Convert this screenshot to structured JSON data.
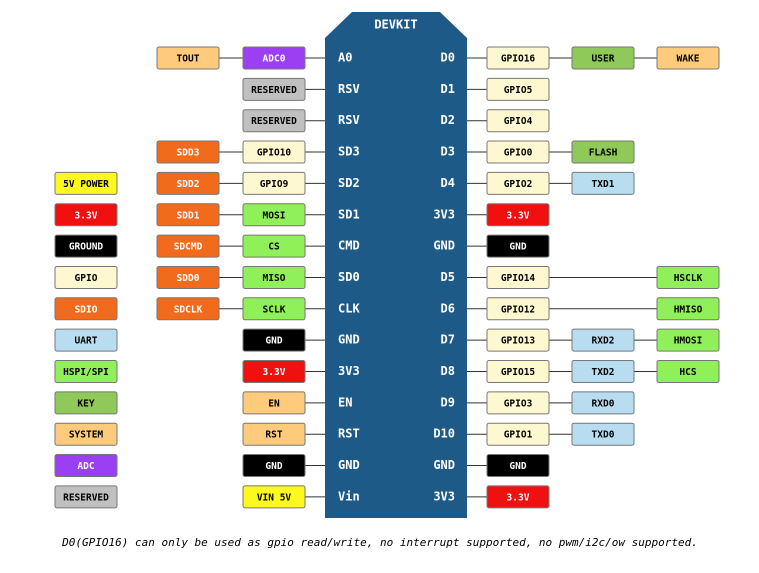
{
  "board": {
    "title": "DEVKIT"
  },
  "left_rows": [
    {
      "pin": "A0",
      "tags": [
        {
          "text": "ADC0",
          "color": "#9b3ff2"
        },
        {
          "text": "TOUT",
          "color": "#fdcb7b"
        }
      ]
    },
    {
      "pin": "RSV",
      "tags": [
        {
          "text": "RESERVED",
          "color": "#c0c0c0"
        }
      ]
    },
    {
      "pin": "RSV",
      "tags": [
        {
          "text": "RESERVED",
          "color": "#c0c0c0"
        }
      ]
    },
    {
      "pin": "SD3",
      "tags": [
        {
          "text": "GPIO10",
          "color": "#fdf8cf"
        },
        {
          "text": "SDD3",
          "color": "#f26b1d"
        }
      ]
    },
    {
      "pin": "SD2",
      "tags": [
        {
          "text": "GPIO9",
          "color": "#fdf8cf"
        },
        {
          "text": "SDD2",
          "color": "#f26b1d"
        }
      ]
    },
    {
      "pin": "SD1",
      "tags": [
        {
          "text": "MOSI",
          "color": "#8ff05a"
        },
        {
          "text": "SDD1",
          "color": "#f26b1d"
        }
      ]
    },
    {
      "pin": "CMD",
      "tags": [
        {
          "text": "CS",
          "color": "#8ff05a"
        },
        {
          "text": "SDCMD",
          "color": "#f26b1d"
        }
      ]
    },
    {
      "pin": "SD0",
      "tags": [
        {
          "text": "MISO",
          "color": "#8ff05a"
        },
        {
          "text": "SDD0",
          "color": "#f26b1d"
        }
      ]
    },
    {
      "pin": "CLK",
      "tags": [
        {
          "text": "SCLK",
          "color": "#8ff05a"
        },
        {
          "text": "SDCLK",
          "color": "#f26b1d"
        }
      ]
    },
    {
      "pin": "GND",
      "tags": [
        {
          "text": "GND",
          "color": "#000000"
        }
      ]
    },
    {
      "pin": "3V3",
      "tags": [
        {
          "text": "3.3V",
          "color": "#f01010"
        }
      ]
    },
    {
      "pin": "EN",
      "tags": [
        {
          "text": "EN",
          "color": "#fdcb7b"
        }
      ]
    },
    {
      "pin": "RST",
      "tags": [
        {
          "text": "RST",
          "color": "#fdcb7b"
        }
      ]
    },
    {
      "pin": "GND",
      "tags": [
        {
          "text": "GND",
          "color": "#000000"
        }
      ]
    },
    {
      "pin": "Vin",
      "tags": [
        {
          "text": "VIN 5V",
          "color": "#fdf81e"
        }
      ]
    }
  ],
  "right_rows": [
    {
      "pin": "D0",
      "tags": [
        {
          "text": "GPIO16",
          "color": "#fdf8cf"
        },
        {
          "text": "USER",
          "color": "#8ec95a"
        },
        {
          "text": "WAKE",
          "color": "#fdcb7b"
        }
      ]
    },
    {
      "pin": "D1",
      "tags": [
        {
          "text": "GPIO5",
          "color": "#fdf8cf"
        }
      ]
    },
    {
      "pin": "D2",
      "tags": [
        {
          "text": "GPIO4",
          "color": "#fdf8cf"
        }
      ]
    },
    {
      "pin": "D3",
      "tags": [
        {
          "text": "GPIO0",
          "color": "#fdf8cf"
        },
        {
          "text": "FLASH",
          "color": "#8ec95a"
        }
      ]
    },
    {
      "pin": "D4",
      "tags": [
        {
          "text": "GPIO2",
          "color": "#fdf8cf"
        },
        {
          "text": "TXD1",
          "color": "#b8dcf0"
        }
      ]
    },
    {
      "pin": "3V3",
      "tags": [
        {
          "text": "3.3V",
          "color": "#f01010"
        }
      ]
    },
    {
      "pin": "GND",
      "tags": [
        {
          "text": "GND",
          "color": "#000000"
        }
      ]
    },
    {
      "pin": "D5",
      "tags": [
        {
          "text": "GPIO14",
          "color": "#fdf8cf"
        },
        null,
        {
          "text": "HSCLK",
          "color": "#8ff05a"
        }
      ]
    },
    {
      "pin": "D6",
      "tags": [
        {
          "text": "GPIO12",
          "color": "#fdf8cf"
        },
        null,
        {
          "text": "HMISO",
          "color": "#8ff05a"
        }
      ]
    },
    {
      "pin": "D7",
      "tags": [
        {
          "text": "GPIO13",
          "color": "#fdf8cf"
        },
        {
          "text": "RXD2",
          "color": "#b8dcf0"
        },
        {
          "text": "HMOSI",
          "color": "#8ff05a"
        }
      ]
    },
    {
      "pin": "D8",
      "tags": [
        {
          "text": "GPIO15",
          "color": "#fdf8cf"
        },
        {
          "text": "TXD2",
          "color": "#b8dcf0"
        },
        {
          "text": "HCS",
          "color": "#8ff05a"
        }
      ]
    },
    {
      "pin": "D9",
      "tags": [
        {
          "text": "GPIO3",
          "color": "#fdf8cf"
        },
        {
          "text": "RXD0",
          "color": "#b8dcf0"
        }
      ]
    },
    {
      "pin": "D10",
      "tags": [
        {
          "text": "GPIO1",
          "color": "#fdf8cf"
        },
        {
          "text": "TXD0",
          "color": "#b8dcf0"
        }
      ]
    },
    {
      "pin": "GND",
      "tags": [
        {
          "text": "GND",
          "color": "#000000"
        }
      ]
    },
    {
      "pin": "3V3",
      "tags": [
        {
          "text": "3.3V",
          "color": "#f01010"
        }
      ]
    }
  ],
  "legend": [
    {
      "text": "5V POWER",
      "color": "#fdf81e"
    },
    {
      "text": "3.3V",
      "color": "#f01010"
    },
    {
      "text": "GROUND",
      "color": "#000000"
    },
    {
      "text": "GPIO",
      "color": "#fdf8cf"
    },
    {
      "text": "SDIO",
      "color": "#f26b1d"
    },
    {
      "text": "UART",
      "color": "#b8dcf0"
    },
    {
      "text": "HSPI/SPI",
      "color": "#8ff05a"
    },
    {
      "text": "KEY",
      "color": "#8ec95a"
    },
    {
      "text": "SYSTEM",
      "color": "#fdcb7b"
    },
    {
      "text": "ADC",
      "color": "#9b3ff2"
    },
    {
      "text": "RESERVED",
      "color": "#c0c0c0"
    }
  ],
  "footnote": "D0(GPIO16) can only be used as gpio read/write, no interrupt supported, no pwm/i2c/ow supported."
}
